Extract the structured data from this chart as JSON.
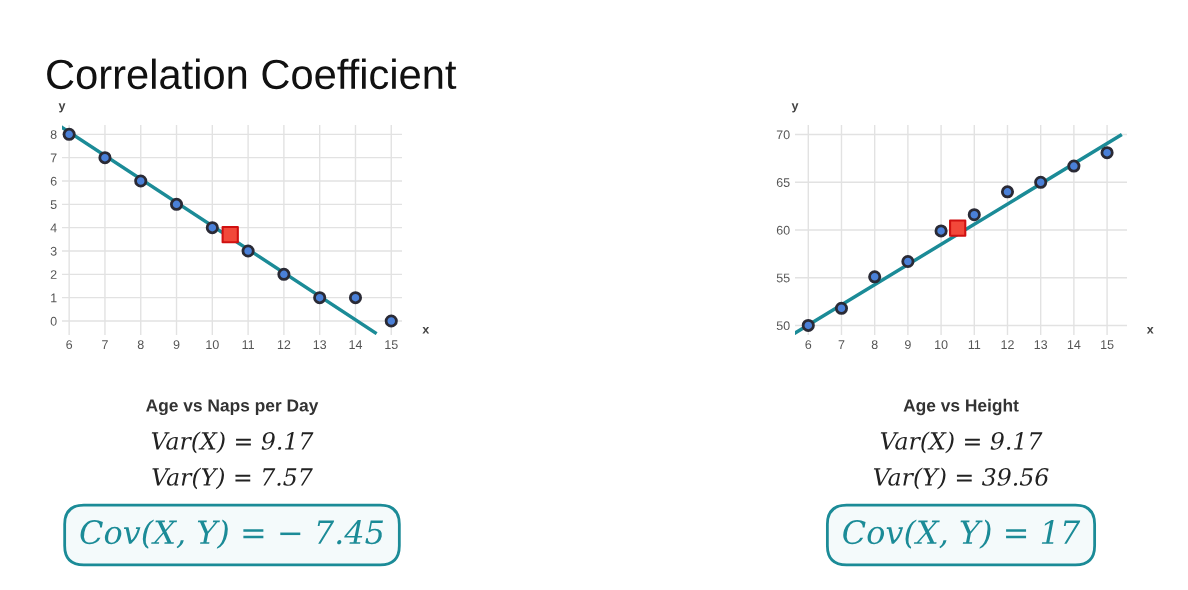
{
  "chart_data": [
    {
      "type": "scatter",
      "title": "Age vs Naps per Day",
      "xlabel": "x",
      "ylabel": "y",
      "annotations": [
        "Correlation Coefficient",
        "Var(X) = 9.17",
        "Var(Y) = 7.57",
        "Cov(X, Y) = − 7.45"
      ],
      "xlim": [
        5.8,
        15.3
      ],
      "ylim": [
        -0.6,
        8.4
      ],
      "xticks": [
        6,
        7,
        8,
        9,
        10,
        11,
        12,
        13,
        14,
        15
      ],
      "yticks": [
        0,
        1,
        2,
        3,
        4,
        5,
        6,
        7,
        8
      ],
      "grid": true,
      "series": [
        {
          "type": "line",
          "color": "#1b8b97",
          "marker": "none",
          "x": [
            5.8,
            14.55
          ],
          "values": [
            8.3,
            -0.5
          ]
        },
        {
          "type": "scatter",
          "color": "#4a80d8",
          "marker": "circle",
          "x": [
            6,
            7,
            8,
            9,
            10,
            11,
            12,
            13,
            14,
            15
          ],
          "values": [
            8,
            7,
            6,
            5,
            4,
            3,
            2,
            1,
            1,
            0
          ]
        },
        {
          "type": "scatter",
          "color": "#f2483a",
          "marker": "square",
          "x": [
            10.5
          ],
          "values": [
            3.7
          ]
        }
      ]
    },
    {
      "type": "scatter",
      "title": "Age vs Height",
      "xlabel": "x",
      "ylabel": "y",
      "annotations": [
        "Var(X) = 9.17",
        "Var(Y) = 39.56",
        "Cov(X, Y) = 17"
      ],
      "xlim": [
        5.6,
        15.6
      ],
      "ylim": [
        49,
        71
      ],
      "xticks": [
        6,
        7,
        8,
        9,
        10,
        11,
        12,
        13,
        14,
        15
      ],
      "yticks": [
        50,
        55,
        60,
        65,
        70
      ],
      "grid": true,
      "series": [
        {
          "type": "line",
          "color": "#1b8b97",
          "marker": "none",
          "x": [
            5.6,
            15.4
          ],
          "values": [
            49.2,
            69.9
          ]
        },
        {
          "type": "scatter",
          "color": "#4a80d8",
          "marker": "circle",
          "x": [
            6,
            7,
            8,
            9,
            10,
            11,
            12,
            13,
            14,
            15
          ],
          "values": [
            50,
            51.8,
            55.1,
            56.7,
            59.9,
            61.6,
            64,
            65,
            66.7,
            68.1
          ]
        },
        {
          "type": "scatter",
          "color": "#f2483a",
          "marker": "square",
          "x": [
            10.5
          ],
          "values": [
            60.2
          ]
        }
      ]
    }
  ]
}
